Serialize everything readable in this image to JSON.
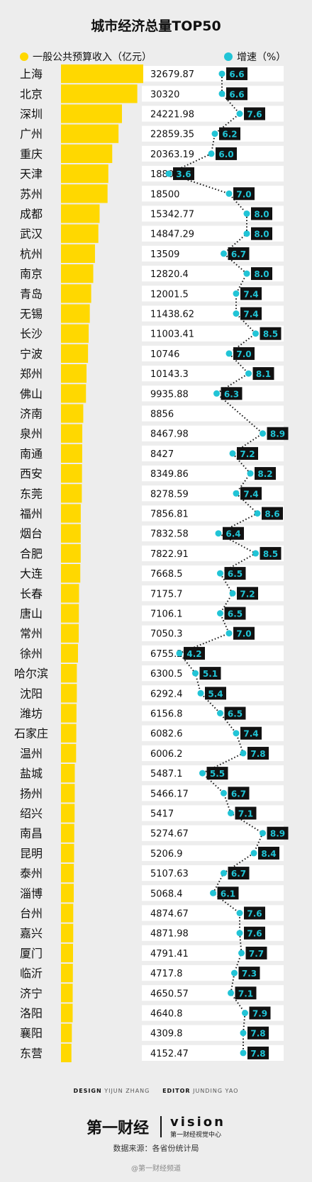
{
  "title": "城市经济总量TOP50",
  "legend": {
    "left": "一般公共预算收入（亿元）",
    "right": "增速（%）"
  },
  "colors": {
    "bar": "#ffd800",
    "dot": "#21c4d6",
    "label_bg": "#111111",
    "label_text": "#21c4d6"
  },
  "chart_data": {
    "type": "bar",
    "title": "城市经济总量TOP50",
    "categories": [
      "上海",
      "北京",
      "深圳",
      "广州",
      "重庆",
      "天津",
      "苏州",
      "成都",
      "武汉",
      "杭州",
      "南京",
      "青岛",
      "无锡",
      "长沙",
      "宁波",
      "郑州",
      "佛山",
      "济南",
      "泉州",
      "南通",
      "西安",
      "东莞",
      "福州",
      "烟台",
      "合肥",
      "大连",
      "长春",
      "唐山",
      "常州",
      "徐州",
      "哈尔滨",
      "沈阳",
      "潍坊",
      "石家庄",
      "温州",
      "盐城",
      "扬州",
      "绍兴",
      "南昌",
      "昆明",
      "泰州",
      "淄博",
      "台州",
      "嘉兴",
      "厦门",
      "临沂",
      "济宁",
      "洛阳",
      "襄阳",
      "东营"
    ],
    "series": [
      {
        "name": "一般公共预算收入（亿元）",
        "values": [
          "32679.87",
          "30320",
          "24221.98",
          "22859.35",
          "20363.19",
          "18809.64",
          "18500",
          "15342.77",
          "14847.29",
          "13509",
          "12820.4",
          "12001.5",
          "11438.62",
          "11003.41",
          "10746",
          "10143.3",
          "9935.88",
          "8856",
          "8467.98",
          "8427",
          "8349.86",
          "8278.59",
          "7856.81",
          "7832.58",
          "7822.91",
          "7668.5",
          "7175.7",
          "7106.1",
          "7050.3",
          "6755.23",
          "6300.5",
          "6292.4",
          "6156.8",
          "6082.6",
          "6006.2",
          "5487.1",
          "5466.17",
          "5417",
          "5274.67",
          "5206.9",
          "5107.63",
          "5068.4",
          "4874.67",
          "4871.98",
          "4791.41",
          "4717.8",
          "4650.57",
          "4640.8",
          "4309.8",
          "4152.47"
        ]
      },
      {
        "name": "增速（%）",
        "values": [
          "6.6",
          "6.6",
          "7.6",
          "6.2",
          "6.0",
          "3.6",
          "7.0",
          "8.0",
          "8.0",
          "6.7",
          "8.0",
          "7.4",
          "7.4",
          "8.5",
          "7.0",
          "8.1",
          "6.3",
          "",
          "8.9",
          "7.2",
          "8.2",
          "7.4",
          "8.6",
          "6.4",
          "8.5",
          "6.5",
          "7.2",
          "6.5",
          "7.0",
          "4.2",
          "5.1",
          "5.4",
          "6.5",
          "7.4",
          "7.8",
          "5.5",
          "6.7",
          "7.1",
          "8.9",
          "8.4",
          "6.7",
          "6.1",
          "7.6",
          "7.6",
          "7.7",
          "7.3",
          "7.1",
          "7.9",
          "7.8",
          "7.8"
        ]
      }
    ],
    "legend_position": "top"
  },
  "credits": {
    "design_label": "DESIGN",
    "design_name": "YIJUN ZHANG",
    "editor_label": "EDITOR",
    "editor_name": "JUNDING YAO"
  },
  "footer": {
    "logo_yicai": "第一财经",
    "logo_vision_big": "vision",
    "logo_vision_small": "第一财经视觉中心",
    "source": "数据来源：各省份统计局",
    "weibo": "@第一财经频道"
  }
}
